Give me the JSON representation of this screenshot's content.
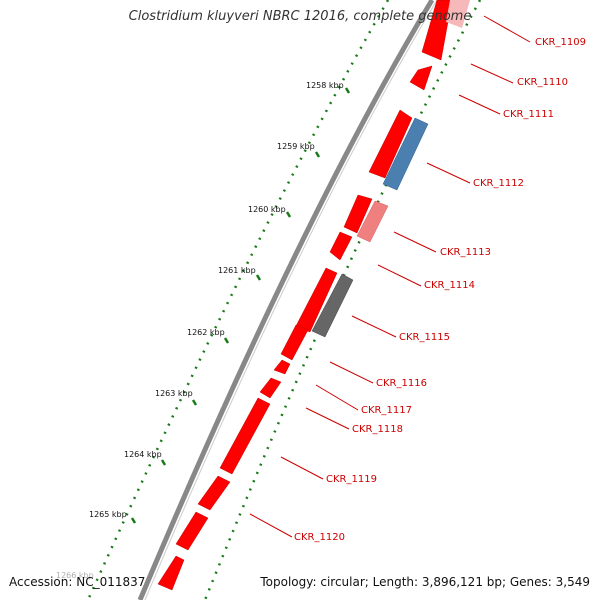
{
  "title": "Clostridium kluyveri NBRC 12016, complete genome",
  "footer": {
    "accession": "Accession: NC_011837",
    "topology": "Topology: circular; Length: 3,896,121 bp; Genes: 3,549"
  },
  "colors": {
    "gene_red": "#ff0000",
    "gene_blue": "#4a7fb0",
    "gene_pink": "#f08080",
    "gene_gray": "#666666",
    "backbone": "#888888",
    "tick_green": "#1a7a1a",
    "label_red": "#cc0000"
  },
  "kbp_labels": [
    "1258 kbp",
    "1259 kbp",
    "1260 kbp",
    "1261 kbp",
    "1262 kbp",
    "1263 kbp",
    "1264 kbp",
    "1265 kbp",
    "1266 kbp"
  ],
  "gene_labels": [
    "CKR_1109",
    "CKR_1110",
    "CKR_1111",
    "CKR_1112",
    "CKR_1113",
    "CKR_1114",
    "CKR_1115",
    "CKR_1116",
    "CKR_1117",
    "CKR_1118",
    "CKR_1119",
    "CKR_1120"
  ]
}
